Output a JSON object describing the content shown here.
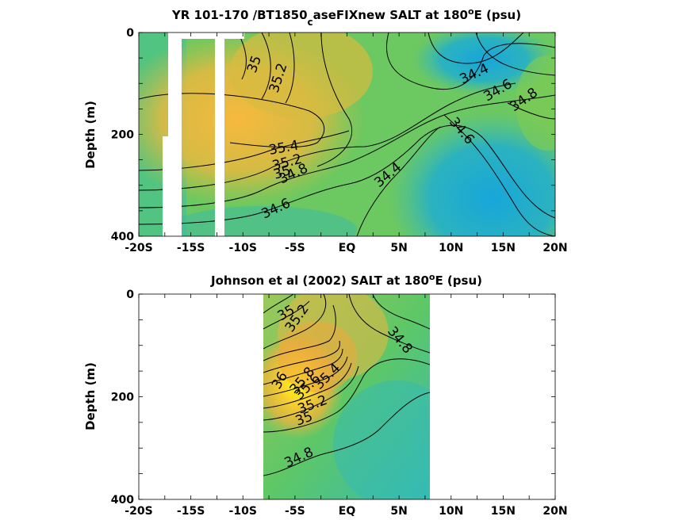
{
  "chart_data": [
    {
      "type": "contour",
      "title_main": "YR 101-170 /BT1850",
      "title_sub": "c",
      "title_rest": "aseFIXnew SALT at 180",
      "title_sup": "o",
      "title_end": "E (psu)",
      "ylabel": "Depth (m)",
      "xlim": [
        -20,
        20
      ],
      "ylim": [
        0,
        400
      ],
      "y_reversed": true,
      "xticks": [
        -20,
        -15,
        -10,
        -5,
        0,
        5,
        10,
        15,
        20
      ],
      "xtick_labels": [
        "-20S",
        "-15S",
        "-10S",
        "-5S",
        "EQ",
        "5N",
        "10N",
        "15N",
        "20N"
      ],
      "yticks": [
        0,
        200,
        400
      ],
      "ytick_labels": [
        "0",
        "200",
        "400"
      ],
      "contour_levels_shown": [
        "35",
        "35.2",
        "35.4",
        "35.2",
        "35",
        "34.8",
        "34.6",
        "34.4",
        "34.4",
        "34.6",
        "34.8",
        "34.6"
      ],
      "missing_columns_lat": [
        [
          -17.5,
          -16
        ],
        [
          -12.5,
          -11.8
        ]
      ],
      "colors": {
        "low": "#1aa8d6",
        "mid": "#6cc85a",
        "high": "#f6ba3e"
      }
    },
    {
      "type": "contour",
      "title_main": "Johnson et al (2002) SALT at 180",
      "title_sup": "o",
      "title_end": "E (psu)",
      "ylabel": "Depth (m)",
      "xlim": [
        -20,
        20
      ],
      "ylim": [
        0,
        400
      ],
      "y_reversed": true,
      "data_lat_range": [
        -8,
        8
      ],
      "xticks": [
        -20,
        -15,
        -10,
        -5,
        0,
        5,
        10,
        15,
        20
      ],
      "xtick_labels": [
        "-20S",
        "-15S",
        "-10S",
        "-5S",
        "EQ",
        "5N",
        "10N",
        "15N",
        "20N"
      ],
      "yticks": [
        0,
        200,
        400
      ],
      "ytick_labels": [
        "0",
        "200",
        "400"
      ],
      "contour_levels_shown": [
        "35",
        "35.2",
        "34.8",
        "36",
        "35.8",
        "35.6",
        "35.4",
        "35.2",
        "35",
        "34.8"
      ],
      "colors": {
        "low": "#2db9c4",
        "mid": "#72cc5e",
        "high": "#fafa14"
      }
    }
  ]
}
